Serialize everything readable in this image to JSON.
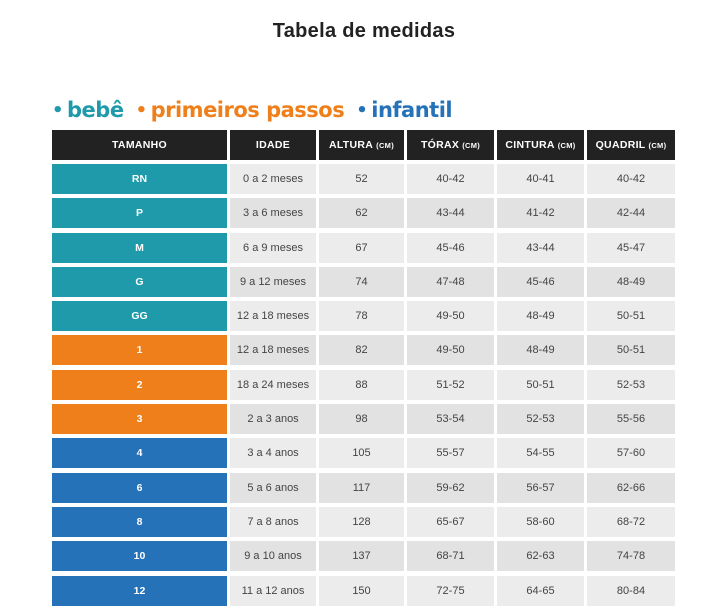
{
  "title": "Tabela de medidas",
  "legend": [
    {
      "label": "bebê",
      "color": "#1f9aaa"
    },
    {
      "label": "primeiros passos",
      "color": "#ef7f1a"
    },
    {
      "label": "infantil",
      "color": "#2672b8"
    }
  ],
  "headers": [
    {
      "label": "TAMANHO",
      "unit": ""
    },
    {
      "label": "IDADE",
      "unit": ""
    },
    {
      "label": "ALTURA",
      "unit": "(CM)"
    },
    {
      "label": "TÓRAX",
      "unit": "(CM)"
    },
    {
      "label": "CINTURA",
      "unit": "(CM)"
    },
    {
      "label": "QUADRIL",
      "unit": "(CM)"
    }
  ],
  "rows": [
    {
      "size": "RN",
      "group": 0,
      "idade": "0 a 2 meses",
      "altura": "52",
      "torax": "40-42",
      "cintura": "40-41",
      "quadril": "40-42"
    },
    {
      "size": "P",
      "group": 0,
      "idade": "3 a 6 meses",
      "altura": "62",
      "torax": "43-44",
      "cintura": "41-42",
      "quadril": "42-44"
    },
    {
      "size": "M",
      "group": 0,
      "idade": "6 a 9 meses",
      "altura": "67",
      "torax": "45-46",
      "cintura": "43-44",
      "quadril": "45-47"
    },
    {
      "size": "G",
      "group": 0,
      "idade": "9 a 12 meses",
      "altura": "74",
      "torax": "47-48",
      "cintura": "45-46",
      "quadril": "48-49"
    },
    {
      "size": "GG",
      "group": 0,
      "idade": "12 a 18 meses",
      "altura": "78",
      "torax": "49-50",
      "cintura": "48-49",
      "quadril": "50-51"
    },
    {
      "size": "1",
      "group": 1,
      "idade": "12 a 18 meses",
      "altura": "82",
      "torax": "49-50",
      "cintura": "48-49",
      "quadril": "50-51"
    },
    {
      "size": "2",
      "group": 1,
      "idade": "18 a 24 meses",
      "altura": "88",
      "torax": "51-52",
      "cintura": "50-51",
      "quadril": "52-53"
    },
    {
      "size": "3",
      "group": 1,
      "idade": "2 a 3 anos",
      "altura": "98",
      "torax": "53-54",
      "cintura": "52-53",
      "quadril": "55-56"
    },
    {
      "size": "4",
      "group": 2,
      "idade": "3 a 4 anos",
      "altura": "105",
      "torax": "55-57",
      "cintura": "54-55",
      "quadril": "57-60"
    },
    {
      "size": "6",
      "group": 2,
      "idade": "5 a 6 anos",
      "altura": "117",
      "torax": "59-62",
      "cintura": "56-57",
      "quadril": "62-66"
    },
    {
      "size": "8",
      "group": 2,
      "idade": "7 a 8 anos",
      "altura": "128",
      "torax": "65-67",
      "cintura": "58-60",
      "quadril": "68-72"
    },
    {
      "size": "10",
      "group": 2,
      "idade": "9 a 10 anos",
      "altura": "137",
      "torax": "68-71",
      "cintura": "62-63",
      "quadril": "74-78"
    },
    {
      "size": "12",
      "group": 2,
      "idade": "11 a 12 anos",
      "altura": "150",
      "torax": "72-75",
      "cintura": "64-65",
      "quadril": "80-84"
    }
  ]
}
